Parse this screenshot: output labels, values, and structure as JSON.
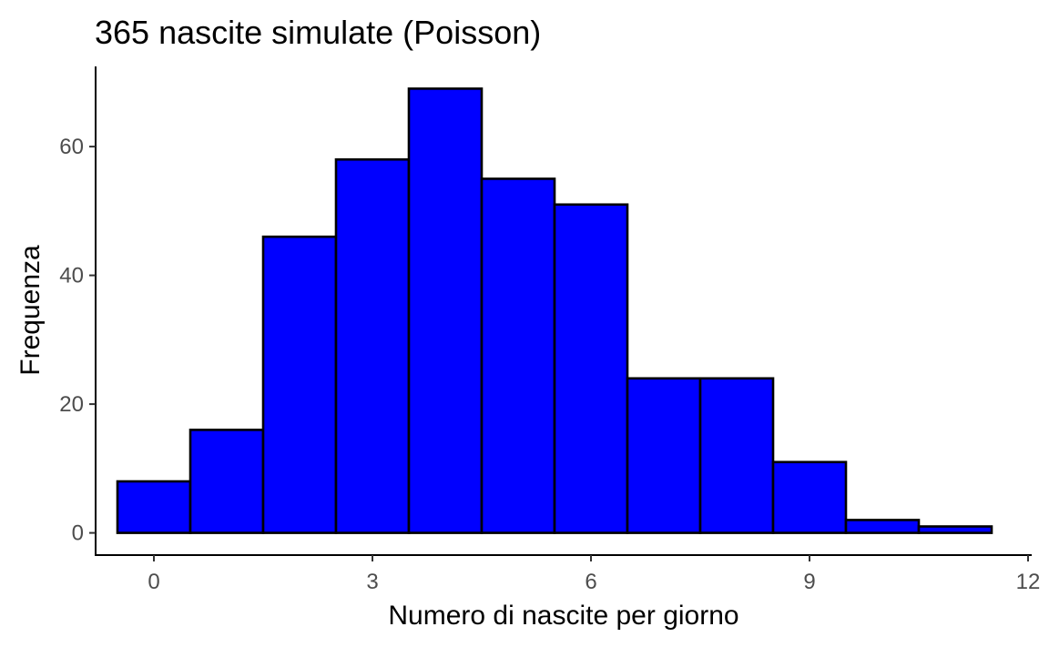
{
  "chart_data": {
    "type": "bar",
    "title": "365 nascite simulate (Poisson)",
    "xlabel": "Numero di nascite per giorno",
    "ylabel": "Frequenza",
    "x": [
      0,
      1,
      2,
      3,
      4,
      5,
      6,
      7,
      8,
      9,
      10,
      11
    ],
    "values": [
      8,
      16,
      46,
      58,
      69,
      55,
      51,
      24,
      24,
      11,
      2,
      1
    ],
    "bin_width": 1,
    "xlim": [
      -0.8,
      12.05
    ],
    "ylim": [
      -3.45,
      72.45
    ],
    "x_ticks": [
      0,
      3,
      6,
      9,
      12
    ],
    "y_ticks": [
      0,
      20,
      40,
      60
    ],
    "grid": false,
    "colors": {
      "fill": "#0000ff",
      "outline": "#000000"
    }
  }
}
